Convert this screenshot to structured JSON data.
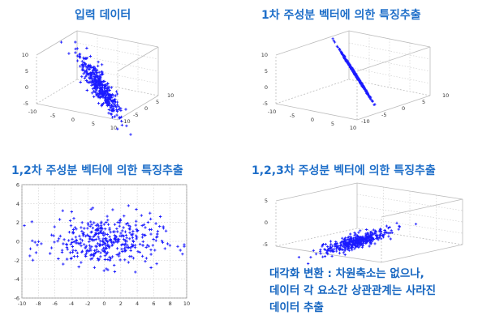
{
  "panels": [
    {
      "id": "input",
      "title": "입력 데이터",
      "chart_data": {
        "type": "scatter3d",
        "x_ticks": [
          "-10",
          "-5",
          "0",
          "5",
          "10"
        ],
        "y_ticks": [
          "-10",
          "-5",
          "0",
          "5",
          "10"
        ],
        "z_ticks": [
          "-5",
          "0",
          "5",
          "10"
        ],
        "grid": true,
        "marker": "+",
        "color": "#1a1aff",
        "n_points": 400,
        "cloud": "elongated ellipsoid along a diagonal direction"
      }
    },
    {
      "id": "pc1",
      "title": "1차 주성분 벡터에 의한 특징추출",
      "chart_data": {
        "type": "scatter3d",
        "x_ticks": [
          "-10",
          "-5",
          "0",
          "5",
          "10"
        ],
        "y_ticks": [
          "-10",
          "-5",
          "0",
          "5",
          "10"
        ],
        "z_ticks": [
          "-5",
          "0",
          "5",
          "10"
        ],
        "grid": true,
        "marker": "+",
        "color": "#1a1aff",
        "n_points": 400,
        "cloud": "points projected onto a single line"
      }
    },
    {
      "id": "pc12",
      "title": "1,2차 주성분 벡터에 의한 특징추출",
      "chart_data": {
        "type": "scatter",
        "x_ticks": [
          "-10",
          "-8",
          "-6",
          "-4",
          "-2",
          "0",
          "2",
          "4",
          "6",
          "8",
          "10"
        ],
        "y_ticks": [
          "-6",
          "-4",
          "-2",
          "0",
          "2",
          "4",
          "6"
        ],
        "xlim": [
          -10,
          10
        ],
        "ylim": [
          -6,
          6
        ],
        "grid": true,
        "marker": "+",
        "color": "#1a1aff",
        "n_points": 400
      }
    },
    {
      "id": "pc123",
      "title": "1,2,3차 주성분 벡터에 의한 특징추출",
      "chart_data": {
        "type": "scatter3d",
        "x_ticks": [],
        "y_ticks": [],
        "z_ticks": [
          "5",
          "0",
          "-5"
        ],
        "grid": true,
        "marker": "+",
        "color": "#1a1aff",
        "n_points": 400,
        "cloud": "decorrelated flat ellipsoid"
      }
    }
  ],
  "note": {
    "lines": [
      "대각화 변환 : 차원축소는 없으나,",
      "데이터 각 요소간 상관관계는 사라진",
      "데이터 추출"
    ]
  }
}
